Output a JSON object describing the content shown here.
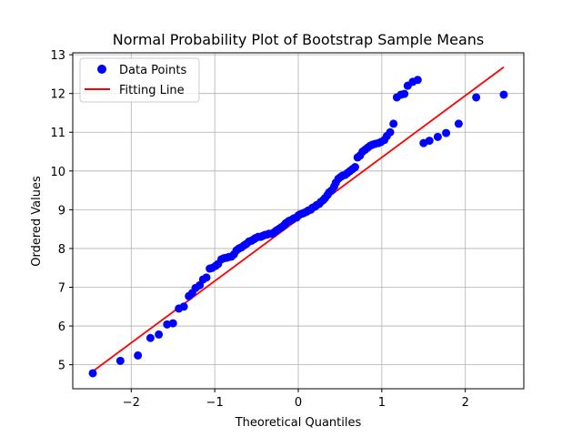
{
  "chart_data": {
    "type": "scatter",
    "title": "Normal Probability Plot of Bootstrap Sample Means",
    "xlabel": "Theoretical Quantiles",
    "ylabel": "Ordered Values",
    "xlim": [
      -2.7,
      2.7
    ],
    "ylim": [
      4.38,
      13.05
    ],
    "xticks": [
      -2,
      -1,
      0,
      1,
      2
    ],
    "yticks": [
      5,
      6,
      7,
      8,
      9,
      10,
      11,
      12,
      13
    ],
    "grid": true,
    "legend_position": "top-left",
    "colors": {
      "points": "#0000ff",
      "line": "#ff0000"
    },
    "series": [
      {
        "name": "Data Points",
        "kind": "scatter",
        "x": [
          -2.46,
          -2.13,
          -1.92,
          -1.77,
          -1.67,
          -1.57,
          -1.5,
          -1.43,
          -1.37,
          -1.31,
          -1.27,
          -1.23,
          -1.18,
          -1.14,
          -1.1,
          -1.06,
          -1.03,
          -0.99,
          -0.96,
          -0.92,
          -0.89,
          -0.86,
          -0.83,
          -0.8,
          -0.77,
          -0.74,
          -0.71,
          -0.68,
          -0.65,
          -0.62,
          -0.59,
          -0.56,
          -0.53,
          -0.51,
          -0.48,
          -0.45,
          -0.43,
          -0.4,
          -0.37,
          -0.35,
          -0.32,
          -0.3,
          -0.27,
          -0.25,
          -0.22,
          -0.2,
          -0.17,
          -0.15,
          -0.12,
          -0.1,
          -0.07,
          -0.05,
          -0.02,
          0.0,
          0.02,
          0.05,
          0.07,
          0.1,
          0.12,
          0.15,
          0.17,
          0.2,
          0.22,
          0.25,
          0.27,
          0.3,
          0.32,
          0.35,
          0.37,
          0.4,
          0.43,
          0.45,
          0.48,
          0.51,
          0.53,
          0.56,
          0.59,
          0.62,
          0.65,
          0.68,
          0.71,
          0.74,
          0.77,
          0.8,
          0.83,
          0.86,
          0.89,
          0.92,
          0.96,
          0.99,
          1.03,
          1.06,
          1.1,
          1.14,
          1.18,
          1.23,
          1.27,
          1.31,
          1.37,
          1.43,
          1.5,
          1.57,
          1.67,
          1.77,
          1.92,
          2.13,
          2.46
        ],
        "y": [
          4.78,
          5.1,
          5.24,
          5.69,
          5.78,
          6.04,
          6.07,
          6.45,
          6.5,
          6.77,
          6.85,
          6.98,
          7.05,
          7.2,
          7.25,
          7.48,
          7.5,
          7.55,
          7.6,
          7.72,
          7.75,
          7.76,
          7.78,
          7.79,
          7.85,
          7.95,
          8.0,
          8.03,
          8.08,
          8.12,
          8.18,
          8.2,
          8.24,
          8.27,
          8.3,
          8.3,
          8.32,
          8.35,
          8.36,
          8.38,
          8.38,
          8.4,
          8.45,
          8.48,
          8.52,
          8.55,
          8.6,
          8.65,
          8.7,
          8.72,
          8.75,
          8.78,
          8.8,
          8.85,
          8.88,
          8.9,
          8.92,
          8.95,
          8.98,
          9.0,
          9.05,
          9.08,
          9.12,
          9.15,
          9.2,
          9.25,
          9.3,
          9.38,
          9.45,
          9.5,
          9.6,
          9.7,
          9.8,
          9.85,
          9.88,
          9.9,
          9.95,
          10.0,
          10.05,
          10.1,
          10.35,
          10.4,
          10.5,
          10.55,
          10.6,
          10.65,
          10.68,
          10.7,
          10.72,
          10.75,
          10.8,
          10.9,
          11.0,
          11.22,
          11.9,
          11.97,
          11.99,
          12.2,
          12.3,
          12.35,
          10.72,
          10.78,
          10.88,
          10.98,
          11.22,
          11.9,
          11.97
        ],
        "color": "#0000ff"
      },
      {
        "name": "Fitting Line",
        "kind": "line",
        "x": [
          -2.46,
          2.46
        ],
        "y": [
          4.83,
          12.68
        ],
        "color": "#ff0000"
      }
    ]
  }
}
